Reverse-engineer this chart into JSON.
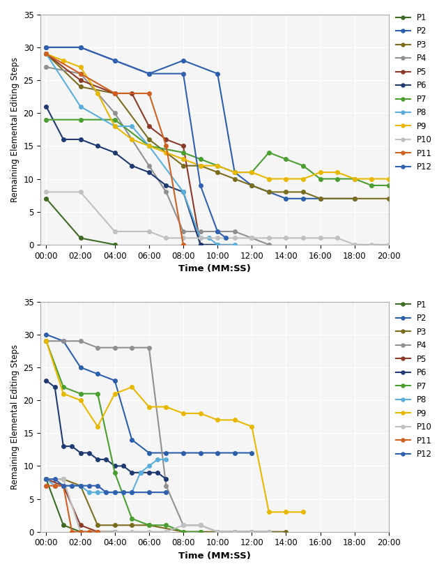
{
  "colors": {
    "P1": "#3d6b23",
    "P2": "#2b5fac",
    "P3": "#7a6d1e",
    "P4": "#909090",
    "P5": "#8b3a2a",
    "P6": "#1e3a70",
    "P7": "#4a9e30",
    "P8": "#5aaedc",
    "P9": "#e8b800",
    "P10": "#c0c0c0",
    "P11": "#d06020",
    "P12": "#3060b0"
  },
  "top_chart": {
    "P1": {
      "t": [
        0,
        120,
        240
      ],
      "v": [
        7,
        1,
        0
      ]
    },
    "P2": {
      "t": [
        0,
        120,
        240,
        360,
        480,
        600,
        660,
        720,
        780,
        840,
        900,
        960,
        1080
      ],
      "v": [
        30,
        30,
        28,
        26,
        28,
        26,
        11,
        9,
        8,
        7,
        7,
        7,
        7
      ]
    },
    "P3": {
      "t": [
        0,
        120,
        240,
        360,
        480,
        540,
        600,
        660,
        720,
        780,
        840,
        900,
        960,
        1080,
        1200,
        1380
      ],
      "v": [
        29,
        24,
        23,
        16,
        12,
        12,
        11,
        10,
        9,
        8,
        8,
        8,
        7,
        7,
        7,
        7
      ]
    },
    "P4": {
      "t": [
        0,
        120,
        240,
        360,
        420,
        480,
        540,
        600,
        660,
        720,
        780
      ],
      "v": [
        27,
        26,
        20,
        12,
        8,
        2,
        2,
        2,
        2,
        1,
        0
      ]
    },
    "P5": {
      "t": [
        0,
        120,
        240,
        300,
        360,
        420,
        480,
        540
      ],
      "v": [
        29,
        25,
        23,
        23,
        18,
        16,
        15,
        0
      ]
    },
    "P6": {
      "t": [
        0,
        60,
        120,
        180,
        240,
        300,
        360,
        420,
        480,
        540,
        600
      ],
      "v": [
        21,
        16,
        16,
        15,
        14,
        12,
        11,
        9,
        8,
        0,
        0
      ]
    },
    "P7": {
      "t": [
        0,
        120,
        240,
        360,
        480,
        540,
        600,
        660,
        720,
        780,
        840,
        900,
        960,
        1020,
        1080,
        1140,
        1200,
        1260,
        1380
      ],
      "v": [
        19,
        19,
        19,
        15,
        14,
        13,
        12,
        11,
        11,
        14,
        13,
        12,
        10,
        10,
        10,
        9,
        9,
        8,
        8
      ]
    },
    "P8": {
      "t": [
        0,
        120,
        240,
        300,
        360,
        480,
        540,
        570,
        600,
        660
      ],
      "v": [
        29,
        21,
        18,
        18,
        15,
        8,
        1,
        1,
        0,
        0
      ]
    },
    "P9": {
      "t": [
        0,
        60,
        120,
        180,
        240,
        300,
        360,
        420,
        480,
        540,
        600,
        660,
        720,
        780,
        840,
        900,
        960,
        1020,
        1080,
        1140,
        1200
      ],
      "v": [
        29,
        28,
        27,
        23,
        18,
        16,
        15,
        14,
        13,
        12,
        12,
        11,
        11,
        10,
        10,
        10,
        11,
        11,
        10,
        10,
        10
      ]
    },
    "P10": {
      "t": [
        0,
        120,
        240,
        360,
        420,
        480,
        540,
        600,
        660,
        720,
        780,
        840,
        900,
        960,
        1020,
        1080,
        1140,
        1200,
        1260,
        1320,
        1380
      ],
      "v": [
        8,
        8,
        2,
        2,
        1,
        1,
        1,
        1,
        1,
        1,
        1,
        1,
        1,
        1,
        1,
        0,
        0,
        0,
        0,
        0,
        0
      ]
    },
    "P11": {
      "t": [
        0,
        120,
        240,
        360,
        420,
        480
      ],
      "v": [
        29,
        26,
        23,
        23,
        15,
        0
      ]
    },
    "P12": {
      "t": [
        0,
        120,
        240,
        360,
        480,
        540,
        600,
        630
      ],
      "v": [
        30,
        30,
        28,
        26,
        26,
        9,
        2,
        1
      ]
    }
  },
  "bottom_chart": {
    "P1": {
      "t": [
        0,
        60,
        120,
        180,
        240
      ],
      "v": [
        8,
        1,
        0,
        0,
        0
      ]
    },
    "P2": {
      "t": [
        0,
        60,
        120,
        180,
        240,
        300,
        360,
        420,
        480,
        540,
        600,
        660,
        720
      ],
      "v": [
        30,
        29,
        25,
        24,
        23,
        14,
        12,
        12,
        12,
        12,
        12,
        12,
        12
      ]
    },
    "P3": {
      "t": [
        0,
        60,
        120,
        180,
        240,
        300,
        360,
        480,
        540,
        600,
        660,
        720,
        840
      ],
      "v": [
        8,
        8,
        7,
        1,
        1,
        1,
        1,
        0,
        0,
        0,
        0,
        0,
        0
      ]
    },
    "P4": {
      "t": [
        0,
        60,
        120,
        180,
        240,
        300,
        360,
        420,
        480,
        540,
        600,
        660,
        720,
        780
      ],
      "v": [
        29,
        29,
        29,
        28,
        28,
        28,
        28,
        7,
        1,
        1,
        0,
        0,
        0,
        0
      ]
    },
    "P5": {
      "t": [
        0,
        60,
        120,
        180,
        240
      ],
      "v": [
        8,
        7,
        1,
        0,
        0
      ]
    },
    "P6": {
      "t": [
        0,
        30,
        60,
        90,
        120,
        150,
        180,
        210,
        240,
        270,
        300,
        330,
        360,
        390,
        420
      ],
      "v": [
        23,
        22,
        13,
        13,
        12,
        12,
        11,
        11,
        10,
        10,
        9,
        9,
        9,
        9,
        8
      ]
    },
    "P7": {
      "t": [
        0,
        60,
        120,
        180,
        240,
        300,
        360,
        420,
        480,
        540
      ],
      "v": [
        29,
        22,
        21,
        21,
        9,
        2,
        1,
        1,
        0,
        0
      ]
    },
    "P8": {
      "t": [
        0,
        30,
        60,
        90,
        120,
        150,
        180,
        210,
        240,
        270,
        300,
        330,
        360,
        390,
        420
      ],
      "v": [
        8,
        7,
        7,
        7,
        7,
        6,
        6,
        6,
        6,
        6,
        6,
        9,
        10,
        11,
        11
      ]
    },
    "P9": {
      "t": [
        0,
        60,
        120,
        180,
        240,
        300,
        360,
        420,
        480,
        540,
        600,
        660,
        720,
        780,
        840,
        900
      ],
      "v": [
        29,
        21,
        20,
        16,
        21,
        22,
        19,
        19,
        18,
        18,
        17,
        17,
        16,
        3,
        3,
        3
      ]
    },
    "P10": {
      "t": [
        0,
        60,
        120,
        180,
        240,
        300,
        360,
        420,
        480,
        540,
        600,
        660,
        720,
        780
      ],
      "v": [
        8,
        8,
        0,
        0,
        0,
        0,
        0,
        0,
        1,
        1,
        0,
        0,
        0,
        0
      ]
    },
    "P11": {
      "t": [
        0,
        30,
        60,
        90,
        120,
        150,
        180
      ],
      "v": [
        7,
        7,
        7,
        0,
        0,
        0,
        0
      ]
    },
    "P12": {
      "t": [
        0,
        30,
        60,
        90,
        120,
        150,
        180,
        210,
        240,
        270,
        300,
        360,
        420
      ],
      "v": [
        8,
        8,
        7,
        7,
        7,
        7,
        7,
        6,
        6,
        6,
        6,
        6,
        6
      ]
    }
  },
  "ylabel": "Remaining Elemental Editing Steps",
  "xlabel": "Time (MM:SS)",
  "ylim": [
    0,
    35
  ],
  "xlim_max": 1200,
  "xticks_seconds": [
    0,
    120,
    240,
    360,
    480,
    600,
    720,
    840,
    960,
    1080,
    1200
  ],
  "xtick_labels": [
    "00:00",
    "02:00",
    "04:00",
    "06:00",
    "08:00",
    "10:00",
    "12:00",
    "14:00",
    "16:00",
    "18:00",
    "20:00"
  ],
  "yticks": [
    0,
    5,
    10,
    15,
    20,
    25,
    30,
    35
  ],
  "participants": [
    "P1",
    "P2",
    "P3",
    "P4",
    "P5",
    "P6",
    "P7",
    "P8",
    "P9",
    "P10",
    "P11",
    "P12"
  ],
  "bg_color": "#f5f5f5",
  "grid_color": "#ffffff",
  "marker_size": 4,
  "line_width": 1.5
}
